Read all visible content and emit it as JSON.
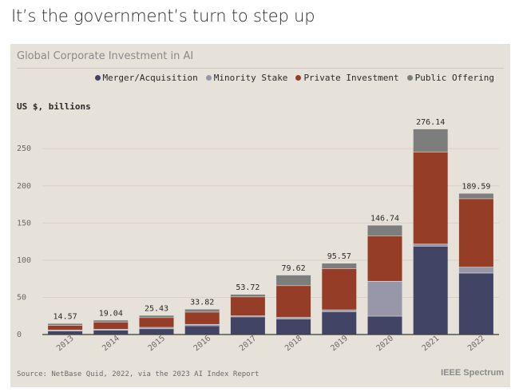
{
  "headline": "It’s the government’s turn to step up",
  "panel_title": "Global Corporate Investment in AI",
  "units_label": "US $, billions",
  "source": "Source: NetBase Quid, 2022, via the 2023 AI Index Report",
  "brand": "IEEE Spectrum",
  "legend": [
    {
      "label": "Merger/Acquisition",
      "color": "#424466"
    },
    {
      "label": "Minority Stake",
      "color": "#9897aa"
    },
    {
      "label": "Private Investment",
      "color": "#963d28"
    },
    {
      "label": "Public Offering",
      "color": "#7d7d7d"
    }
  ],
  "chart_data": {
    "type": "bar",
    "stacked": true,
    "categories": [
      "2013",
      "2014",
      "2015",
      "2016",
      "2017",
      "2018",
      "2019",
      "2020",
      "2021",
      "2022"
    ],
    "series": [
      {
        "name": "Merger/Acquisition",
        "color": "#424466",
        "values": [
          5,
          6,
          8,
          12,
          24,
          21,
          31,
          25,
          119,
          83
        ]
      },
      {
        "name": "Minority Stake",
        "color": "#9897aa",
        "values": [
          1.5,
          1.5,
          2,
          2,
          1.5,
          2.5,
          2.5,
          47,
          3,
          8
        ]
      },
      {
        "name": "Private Investment",
        "color": "#963d28",
        "values": [
          6,
          9.5,
          13,
          16.5,
          25.5,
          42.5,
          55.5,
          61,
          124,
          92
        ]
      },
      {
        "name": "Public Offering",
        "color": "#7d7d7d",
        "values": [
          2.07,
          2.04,
          2.43,
          3.32,
          2.72,
          13.62,
          6.57,
          13.74,
          30.14,
          6.59
        ]
      }
    ],
    "totals": [
      "14.57",
      "19.04",
      "25.43",
      "33.82",
      "53.72",
      "79.62",
      "95.57",
      "146.74",
      "276.14",
      "189.59"
    ],
    "yticks": [
      0,
      50,
      100,
      150,
      200,
      250
    ],
    "ylim": [
      0,
      290
    ],
    "grid": true,
    "legend_position": "top-right"
  }
}
